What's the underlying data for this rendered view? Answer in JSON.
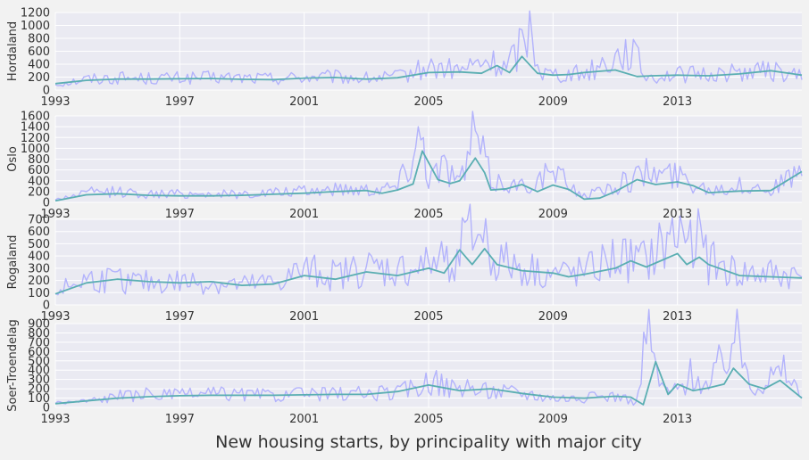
{
  "chart_data": {
    "type": "line",
    "title": "",
    "xlabel": "New housing starts, by principality with major city",
    "x_range": [
      1993,
      2017
    ],
    "x_ticks": [
      1993,
      1997,
      2001,
      2005,
      2009,
      2013
    ],
    "x_tick_labels": [
      "1993",
      "1997",
      "2001",
      "2005",
      "2009",
      "2013"
    ],
    "grid": true,
    "legend": "none",
    "colors": {
      "background": "#f2f2f2",
      "plot_area": "#eaeaf2",
      "grid": "#ffffff",
      "raw_series": "#b3b3fc",
      "smoothed_series": "#5aaeb2"
    },
    "panels": [
      {
        "ylabel": "Hordaland",
        "ylim": [
          0,
          1200
        ],
        "y_ticks": [
          0,
          200,
          400,
          600,
          800,
          1000,
          1200
        ],
        "raw_anchors": [
          [
            1993,
            90
          ],
          [
            1994,
            170
          ],
          [
            1995,
            190
          ],
          [
            1996,
            180
          ],
          [
            1997,
            185
          ],
          [
            1998,
            190
          ],
          [
            1999,
            190
          ],
          [
            2000,
            180
          ],
          [
            2001,
            200
          ],
          [
            2002,
            200
          ],
          [
            2003,
            180
          ],
          [
            2004,
            200
          ],
          [
            2005,
            350
          ],
          [
            2006,
            300
          ],
          [
            2006.9,
            440
          ],
          [
            2007.5,
            330
          ],
          [
            2008.3,
            1000
          ],
          [
            2008.6,
            280
          ],
          [
            2009,
            250
          ],
          [
            2010,
            260
          ],
          [
            2011.5,
            640
          ],
          [
            2012,
            200
          ],
          [
            2013,
            240
          ],
          [
            2014,
            240
          ],
          [
            2015,
            280
          ],
          [
            2016,
            300
          ],
          [
            2017,
            200
          ]
        ],
        "smooth": [
          [
            1993,
            100
          ],
          [
            1994,
            150
          ],
          [
            1995,
            170
          ],
          [
            1996,
            170
          ],
          [
            1997,
            175
          ],
          [
            1998,
            180
          ],
          [
            1999,
            165
          ],
          [
            2000,
            160
          ],
          [
            2001,
            185
          ],
          [
            2002,
            195
          ],
          [
            2003,
            170
          ],
          [
            2004,
            190
          ],
          [
            2005,
            270
          ],
          [
            2006,
            280
          ],
          [
            2006.7,
            260
          ],
          [
            2007.2,
            380
          ],
          [
            2007.6,
            270
          ],
          [
            2008,
            520
          ],
          [
            2008.5,
            260
          ],
          [
            2009,
            230
          ],
          [
            2009.5,
            240
          ],
          [
            2010,
            270
          ],
          [
            2011,
            310
          ],
          [
            2011.7,
            210
          ],
          [
            2012.2,
            220
          ],
          [
            2013,
            230
          ],
          [
            2014,
            220
          ],
          [
            2015,
            250
          ],
          [
            2016,
            300
          ],
          [
            2017,
            230
          ]
        ]
      },
      {
        "ylabel": "Oslo",
        "ylim": [
          0,
          1600
        ],
        "y_ticks": [
          0,
          200,
          400,
          600,
          800,
          1000,
          1200,
          1400,
          1600
        ],
        "raw_anchors": [
          [
            1993,
            50
          ],
          [
            1994,
            180
          ],
          [
            1995,
            200
          ],
          [
            1996,
            150
          ],
          [
            1997,
            160
          ],
          [
            1998,
            160
          ],
          [
            1999,
            150
          ],
          [
            2000,
            180
          ],
          [
            2001,
            200
          ],
          [
            2002,
            250
          ],
          [
            2003,
            250
          ],
          [
            2004,
            300
          ],
          [
            2004.8,
            1350
          ],
          [
            2005,
            500
          ],
          [
            2005.6,
            700
          ],
          [
            2006,
            350
          ],
          [
            2006.5,
            1300
          ],
          [
            2007,
            400
          ],
          [
            2008,
            300
          ],
          [
            2009,
            550
          ],
          [
            2010,
            120
          ],
          [
            2011,
            300
          ],
          [
            2012,
            550
          ],
          [
            2013,
            500
          ],
          [
            2014,
            250
          ],
          [
            2015,
            300
          ],
          [
            2016,
            250
          ],
          [
            2017,
            550
          ]
        ],
        "smooth": [
          [
            1993,
            30
          ],
          [
            1994,
            140
          ],
          [
            1995,
            160
          ],
          [
            1996,
            130
          ],
          [
            1997,
            120
          ],
          [
            1998,
            120
          ],
          [
            1999,
            130
          ],
          [
            2000,
            150
          ],
          [
            2001,
            170
          ],
          [
            2002,
            200
          ],
          [
            2003,
            220
          ],
          [
            2003.5,
            170
          ],
          [
            2004,
            230
          ],
          [
            2004.5,
            340
          ],
          [
            2004.8,
            950
          ],
          [
            2005.3,
            420
          ],
          [
            2005.7,
            350
          ],
          [
            2006,
            400
          ],
          [
            2006.5,
            820
          ],
          [
            2006.8,
            550
          ],
          [
            2007,
            230
          ],
          [
            2007.5,
            250
          ],
          [
            2008,
            330
          ],
          [
            2008.5,
            200
          ],
          [
            2009,
            320
          ],
          [
            2009.5,
            240
          ],
          [
            2010,
            60
          ],
          [
            2010.5,
            80
          ],
          [
            2011,
            200
          ],
          [
            2011.7,
            420
          ],
          [
            2012.3,
            330
          ],
          [
            2013,
            380
          ],
          [
            2013.5,
            310
          ],
          [
            2014,
            180
          ],
          [
            2015,
            210
          ],
          [
            2016,
            220
          ],
          [
            2017,
            570
          ]
        ]
      },
      {
        "ylabel": "Rogaland",
        "ylim": [
          0,
          700
        ],
        "y_ticks": [
          0,
          100,
          200,
          300,
          400,
          500,
          600,
          700
        ],
        "raw_anchors": [
          [
            1993,
            110
          ],
          [
            1994,
            210
          ],
          [
            1995,
            200
          ],
          [
            1996,
            180
          ],
          [
            1997,
            190
          ],
          [
            1998,
            180
          ],
          [
            1999,
            160
          ],
          [
            2000,
            180
          ],
          [
            2001,
            280
          ],
          [
            2002,
            240
          ],
          [
            2003,
            300
          ],
          [
            2004,
            280
          ],
          [
            2005,
            320
          ],
          [
            2006,
            450
          ],
          [
            2006.7,
            650
          ],
          [
            2007,
            380
          ],
          [
            2008,
            300
          ],
          [
            2009,
            250
          ],
          [
            2010,
            260
          ],
          [
            2011,
            380
          ],
          [
            2012,
            350
          ],
          [
            2012.7,
            520
          ],
          [
            2013.5,
            650
          ],
          [
            2014,
            350
          ],
          [
            2015,
            250
          ],
          [
            2016,
            250
          ],
          [
            2017,
            230
          ]
        ],
        "smooth": [
          [
            1993,
            90
          ],
          [
            1994,
            180
          ],
          [
            1995,
            210
          ],
          [
            1996,
            190
          ],
          [
            1997,
            180
          ],
          [
            1998,
            190
          ],
          [
            1999,
            160
          ],
          [
            2000,
            170
          ],
          [
            2001,
            240
          ],
          [
            2002,
            210
          ],
          [
            2003,
            270
          ],
          [
            2004,
            240
          ],
          [
            2005,
            300
          ],
          [
            2005.5,
            260
          ],
          [
            2006,
            450
          ],
          [
            2006.4,
            330
          ],
          [
            2006.8,
            460
          ],
          [
            2007.2,
            330
          ],
          [
            2008,
            280
          ],
          [
            2009,
            260
          ],
          [
            2009.5,
            230
          ],
          [
            2010,
            250
          ],
          [
            2011,
            300
          ],
          [
            2011.5,
            360
          ],
          [
            2012,
            310
          ],
          [
            2013,
            420
          ],
          [
            2013.3,
            330
          ],
          [
            2013.7,
            390
          ],
          [
            2014,
            330
          ],
          [
            2015,
            240
          ],
          [
            2016,
            230
          ],
          [
            2017,
            220
          ]
        ]
      },
      {
        "ylabel": "Soer-Troendelag",
        "ylim": [
          0,
          900
        ],
        "y_ticks": [
          0,
          100,
          200,
          300,
          400,
          500,
          600,
          700,
          800,
          900
        ],
        "raw_anchors": [
          [
            1993,
            50
          ],
          [
            1994,
            70
          ],
          [
            1995,
            120
          ],
          [
            1996,
            140
          ],
          [
            1997,
            130
          ],
          [
            1998,
            150
          ],
          [
            1999,
            140
          ],
          [
            2000,
            130
          ],
          [
            2001,
            140
          ],
          [
            2002,
            150
          ],
          [
            2003,
            150
          ],
          [
            2004,
            160
          ],
          [
            2005,
            280
          ],
          [
            2006,
            200
          ],
          [
            2007,
            180
          ],
          [
            2008,
            160
          ],
          [
            2009,
            110
          ],
          [
            2010,
            100
          ],
          [
            2011,
            130
          ],
          [
            2011.7,
            40
          ],
          [
            2012,
            850
          ],
          [
            2012.5,
            200
          ],
          [
            2013,
            180
          ],
          [
            2013.5,
            400
          ],
          [
            2014,
            200
          ],
          [
            2014.8,
            800
          ],
          [
            2015.5,
            250
          ],
          [
            2016.5,
            400
          ],
          [
            2017,
            100
          ]
        ],
        "smooth": [
          [
            1993,
            40
          ],
          [
            1994,
            70
          ],
          [
            1995,
            100
          ],
          [
            1996,
            115
          ],
          [
            1997,
            125
          ],
          [
            1998,
            130
          ],
          [
            1999,
            130
          ],
          [
            2000,
            130
          ],
          [
            2001,
            135
          ],
          [
            2002,
            140
          ],
          [
            2003,
            140
          ],
          [
            2004,
            170
          ],
          [
            2005,
            240
          ],
          [
            2006,
            180
          ],
          [
            2007,
            200
          ],
          [
            2008,
            150
          ],
          [
            2009,
            110
          ],
          [
            2010,
            100
          ],
          [
            2011,
            120
          ],
          [
            2011.5,
            110
          ],
          [
            2011.9,
            30
          ],
          [
            2012.3,
            490
          ],
          [
            2012.7,
            140
          ],
          [
            2013,
            250
          ],
          [
            2013.5,
            180
          ],
          [
            2014,
            210
          ],
          [
            2014.5,
            250
          ],
          [
            2014.8,
            420
          ],
          [
            2015.3,
            250
          ],
          [
            2015.8,
            200
          ],
          [
            2016.3,
            290
          ],
          [
            2017,
            100
          ]
        ]
      }
    ]
  }
}
